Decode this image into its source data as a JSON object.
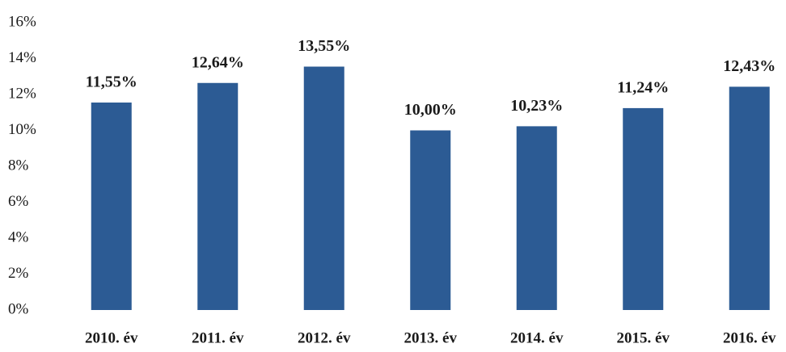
{
  "chart_data": {
    "type": "bar",
    "categories": [
      "2010. év",
      "2011. év",
      "2012. év",
      "2013. év",
      "2014. év",
      "2015. év",
      "2016. év"
    ],
    "values": [
      11.55,
      12.64,
      13.55,
      10.0,
      10.23,
      11.24,
      12.43
    ],
    "value_labels": [
      "11,55%",
      "12,64%",
      "13,55%",
      "10,00%",
      "10,23%",
      "11,24%",
      "12,43%"
    ],
    "color": "#2c5b94",
    "ylim": [
      0,
      16
    ],
    "yticks": [
      {
        "value": 0,
        "label": "0%"
      },
      {
        "value": 2,
        "label": "2%"
      },
      {
        "value": 4,
        "label": "4%"
      },
      {
        "value": 6,
        "label": "6%"
      },
      {
        "value": 8,
        "label": "8%"
      },
      {
        "value": 10,
        "label": "10%"
      },
      {
        "value": 12,
        "label": "12%"
      },
      {
        "value": 14,
        "label": "14%"
      },
      {
        "value": 16,
        "label": "16%"
      }
    ],
    "grid": false
  }
}
